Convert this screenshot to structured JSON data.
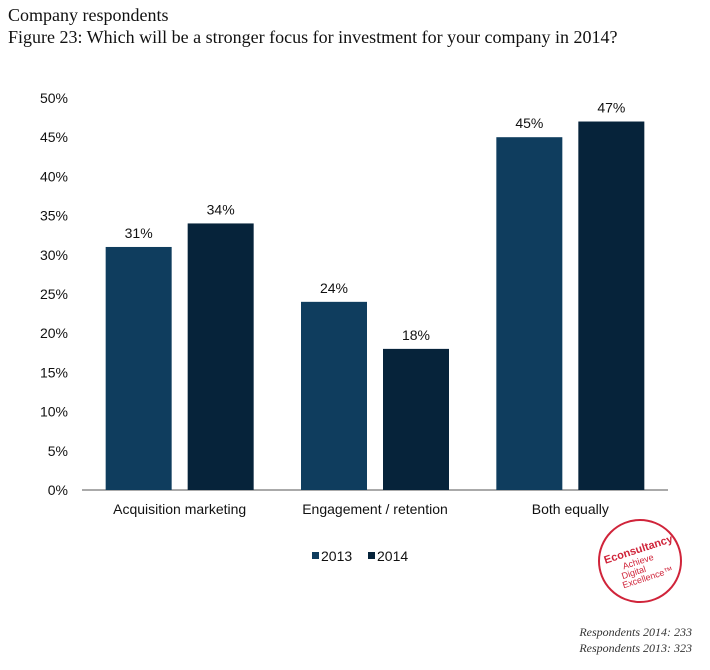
{
  "header": {
    "line1": "Company respondents",
    "line2": "Figure 23: Which will be a stronger focus for investment for your company in 2014?"
  },
  "logo": {
    "brand": "Econsultancy",
    "tagline_1": "Achieve",
    "tagline_2": "Digital",
    "tagline_3": "Excellence™",
    "color": "#d0243a"
  },
  "footer": {
    "respondents_2014": "Respondents 2014: 233",
    "respondents_2013": "Respondents 2013: 323"
  },
  "chart_data": {
    "type": "bar",
    "categories": [
      "Acquisition marketing",
      "Engagement / retention",
      "Both equally"
    ],
    "series": [
      {
        "name": "2013",
        "values": [
          31,
          24,
          45
        ],
        "labels": [
          "31%",
          "24%",
          "45%"
        ],
        "color": "#0f3d5e"
      },
      {
        "name": "2014",
        "values": [
          34,
          18,
          47
        ],
        "labels": [
          "34%",
          "18%",
          "47%"
        ],
        "color": "#06233a"
      }
    ],
    "ylim": [
      0,
      50
    ],
    "yticks": [
      "0%",
      "5%",
      "10%",
      "15%",
      "20%",
      "25%",
      "30%",
      "35%",
      "40%",
      "45%",
      "50%"
    ],
    "grid": false,
    "legend_position": "bottom"
  }
}
